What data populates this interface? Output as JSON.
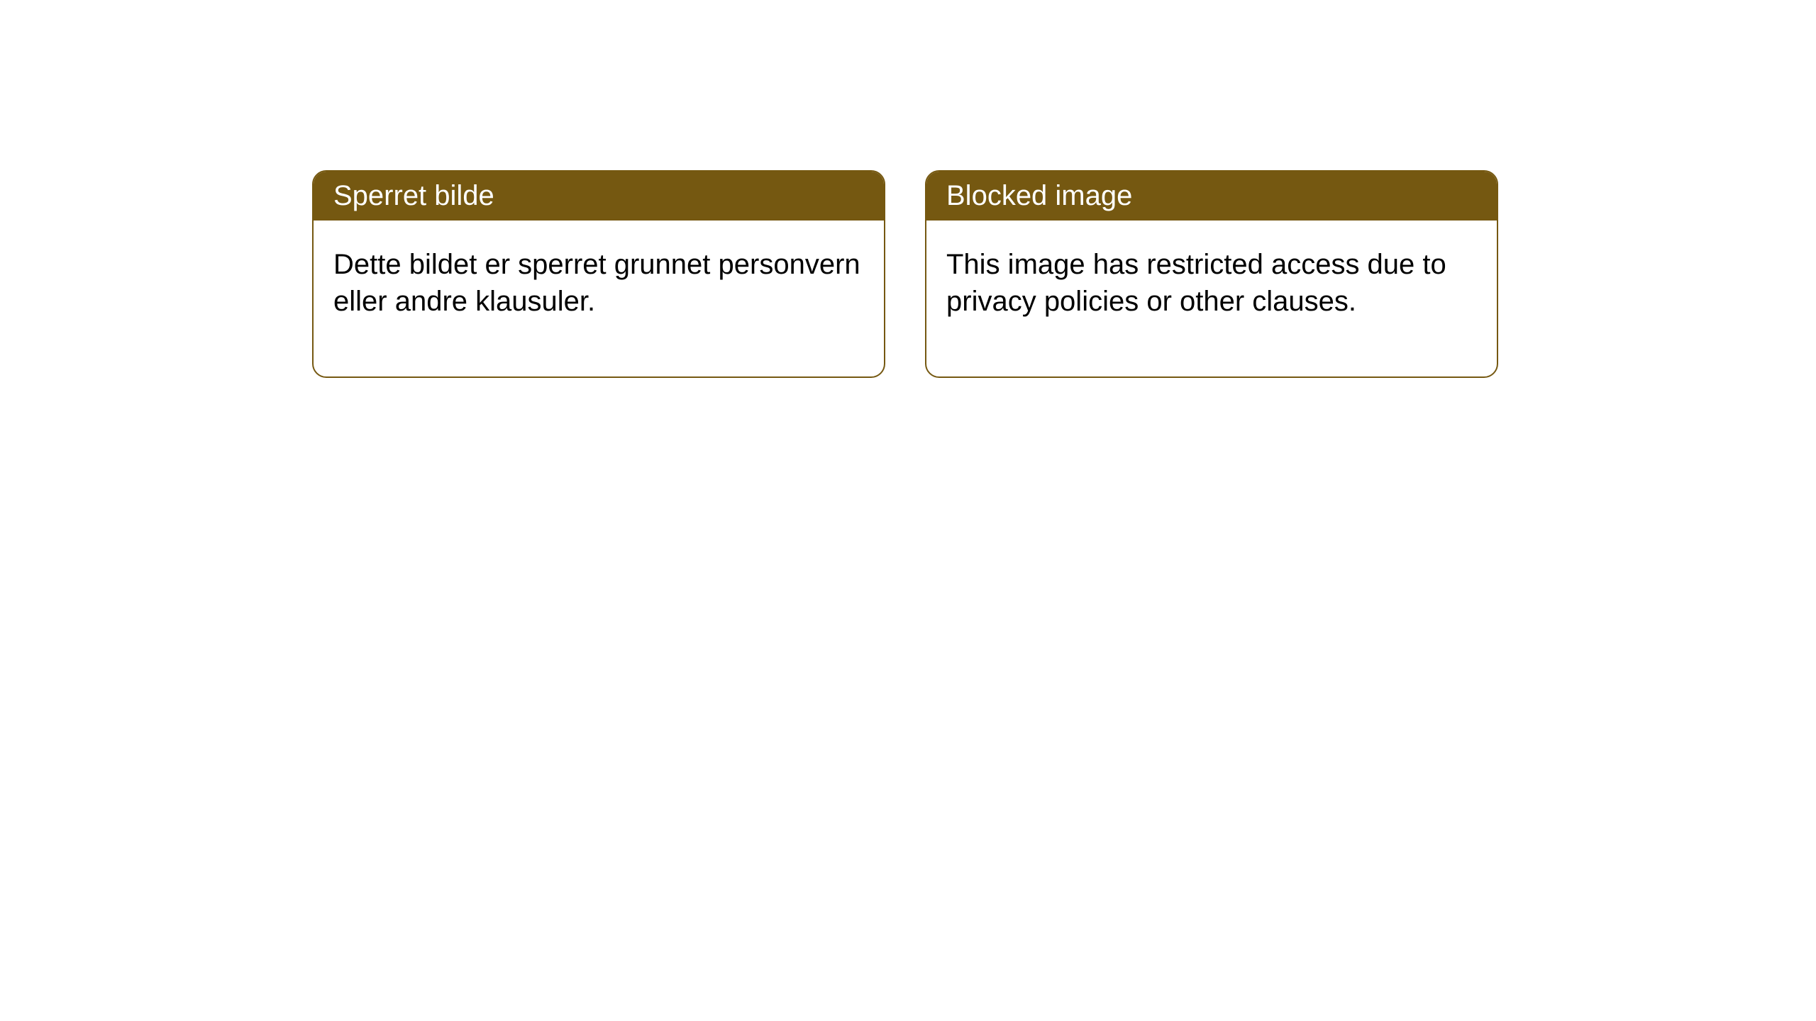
{
  "cards": [
    {
      "title": "Sperret bilde",
      "body": "Dette bildet er sperret grunnet personvern eller andre klausuler."
    },
    {
      "title": "Blocked image",
      "body": "This image has restricted access due to privacy policies or other clauses."
    }
  ],
  "styling": {
    "header_background": "#755811",
    "header_text_color": "#ffffff",
    "card_border_color": "#755811",
    "card_background": "#ffffff",
    "body_text_color": "#000000",
    "page_background": "#ffffff",
    "border_radius": 20,
    "header_fontsize": 40,
    "body_fontsize": 40
  }
}
